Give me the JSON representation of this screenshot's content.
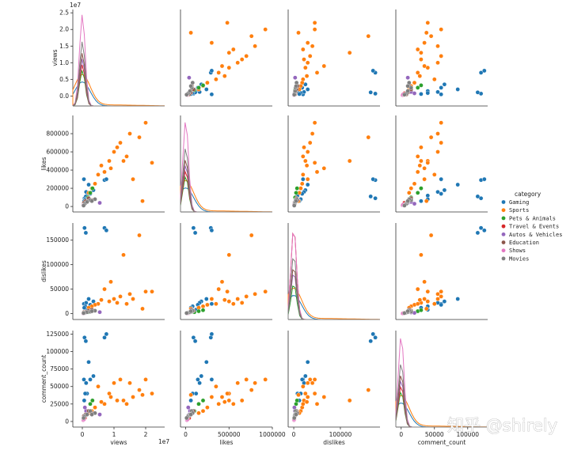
{
  "watermark": "知乎 @shirely",
  "colors": {
    "Gaming": "#1f77b4",
    "Sports": "#ff7f0e",
    "Pets & Animals": "#2ca02c",
    "Travel & Events": "#d62728",
    "Autos & Vehicles": "#9467bd",
    "Education": "#8c564b",
    "Shows": "#e377c2",
    "Movies": "#7f7f7f"
  },
  "chart_data": {
    "type": "scatter",
    "subtype": "pairplot",
    "hue": "category",
    "legend": {
      "title": "category",
      "placement": "right",
      "entries": [
        "Gaming",
        "Sports",
        "Pets & Animals",
        "Travel & Events",
        "Autos & Vehicles",
        "Education",
        "Shows",
        "Movies"
      ]
    },
    "variables": [
      "views",
      "likes",
      "dislikes",
      "comment_count"
    ],
    "axes": {
      "views": {
        "label": "views",
        "range": [
          -3000000,
          26000000
        ],
        "ticks": [
          0,
          10000000,
          20000000
        ],
        "tick_labels": [
          "0",
          "1",
          "2"
        ],
        "offset_text": "1e7",
        "diag_ticks": [
          0,
          5000000,
          10000000,
          15000000,
          20000000,
          25000000
        ],
        "diag_tick_labels": [
          "0.0",
          "0.5",
          "1.0",
          "1.5",
          "2.0",
          "2.5"
        ]
      },
      "likes": {
        "label": "likes",
        "range": [
          -60000,
          1000000
        ],
        "ticks": [
          0,
          200000,
          400000,
          600000,
          800000
        ],
        "tick_labels": [
          "0",
          "200000",
          "400000",
          "600000",
          "800000"
        ],
        "x_ticks": [
          0,
          500000,
          1000000
        ],
        "x_tick_labels": [
          "0",
          "500000",
          "1000000"
        ]
      },
      "dislikes": {
        "label": "dislikes",
        "range": [
          -12000,
          185000
        ],
        "ticks": [
          0,
          50000,
          100000,
          150000
        ],
        "tick_labels": [
          "0",
          "50000",
          "100000",
          "150000"
        ],
        "x_ticks": [
          0,
          100000
        ],
        "x_tick_labels": [
          "0",
          "100000"
        ]
      },
      "comment_count": {
        "label": "comment_count",
        "range": [
          -8000,
          130000
        ],
        "ticks": [
          0,
          25000,
          50000,
          75000,
          100000,
          125000
        ],
        "tick_labels": [
          "0",
          "25000",
          "50000",
          "75000",
          "100000",
          "125000"
        ],
        "x_ticks": [
          0,
          50000,
          100000
        ],
        "x_tick_labels": [
          "0",
          "50000",
          "100000"
        ]
      }
    },
    "series": [
      {
        "name": "Gaming",
        "points": [
          {
            "views": 1500000,
            "likes": 120000,
            "dislikes": 8000,
            "comment_count": 40000
          },
          {
            "views": 700000,
            "likes": 90000,
            "dislikes": 175000,
            "comment_count": 120000
          },
          {
            "views": 1100000,
            "likes": 110000,
            "dislikes": 165000,
            "comment_count": 115000
          },
          {
            "views": 7000000,
            "likes": 290000,
            "dislikes": 175000,
            "comment_count": 120000
          },
          {
            "views": 7600000,
            "likes": 300000,
            "dislikes": 170000,
            "comment_count": 125000
          },
          {
            "views": 500000,
            "likes": 300000,
            "dislikes": 20000,
            "comment_count": 60000
          },
          {
            "views": 2000000,
            "likes": 240000,
            "dislikes": 30000,
            "comment_count": 85000
          },
          {
            "views": 3500000,
            "likes": 180000,
            "dislikes": 25000,
            "comment_count": 65000
          },
          {
            "views": 1200000,
            "likes": 160000,
            "dislikes": 22000,
            "comment_count": 55000
          },
          {
            "views": 900000,
            "likes": 80000,
            "dislikes": 15000,
            "comment_count": 40000
          },
          {
            "views": 2500000,
            "likes": 140000,
            "dislikes": 18000,
            "comment_count": 60000
          },
          {
            "views": 600000,
            "likes": 60000,
            "dislikes": 12000,
            "comment_count": 30000
          }
        ]
      },
      {
        "name": "Sports",
        "points": [
          {
            "views": 5000000,
            "likes": 350000,
            "dislikes": 20000,
            "comment_count": 50000
          },
          {
            "views": 8500000,
            "likes": 500000,
            "dislikes": 25000,
            "comment_count": 40000
          },
          {
            "views": 10000000,
            "likes": 600000,
            "dislikes": 30000,
            "comment_count": 55000
          },
          {
            "views": 12000000,
            "likes": 700000,
            "dislikes": 35000,
            "comment_count": 60000
          },
          {
            "views": 15000000,
            "likes": 800000,
            "dislikes": 40000,
            "comment_count": 55000
          },
          {
            "views": 20000000,
            "likes": 920000,
            "dislikes": 45000,
            "comment_count": 60000
          },
          {
            "views": 18000000,
            "likes": 760000,
            "dislikes": 160000,
            "comment_count": 45000
          },
          {
            "views": 13000000,
            "likes": 500000,
            "dislikes": 120000,
            "comment_count": 30000
          },
          {
            "views": 9000000,
            "likes": 420000,
            "dislikes": 65000,
            "comment_count": 35000
          },
          {
            "views": 7000000,
            "likes": 380000,
            "dislikes": 50000,
            "comment_count": 25000
          },
          {
            "views": 22000000,
            "likes": 480000,
            "dislikes": 45000,
            "comment_count": 40000
          },
          {
            "views": 4000000,
            "likes": 250000,
            "dislikes": 18000,
            "comment_count": 20000
          },
          {
            "views": 3000000,
            "likes": 200000,
            "dislikes": 15000,
            "comment_count": 15000
          },
          {
            "views": 16000000,
            "likes": 300000,
            "dislikes": 30000,
            "comment_count": 35000
          },
          {
            "views": 11000000,
            "likes": 650000,
            "dislikes": 22000,
            "comment_count": 30000
          },
          {
            "views": 6000000,
            "likes": 450000,
            "dislikes": 28000,
            "comment_count": 28000
          },
          {
            "views": 19000000,
            "likes": 60000,
            "dislikes": 10000,
            "comment_count": 38000
          },
          {
            "views": 14000000,
            "likes": 550000,
            "dislikes": 20000,
            "comment_count": 25000
          },
          {
            "views": 2000000,
            "likes": 150000,
            "dislikes": 12000,
            "comment_count": 12000
          }
        ]
      },
      {
        "name": "Pets & Animals",
        "points": [
          {
            "views": 2500000,
            "likes": 150000,
            "dislikes": 5000,
            "comment_count": 25000
          },
          {
            "views": 3200000,
            "likes": 200000,
            "dislikes": 7000,
            "comment_count": 30000
          },
          {
            "views": 1800000,
            "likes": 100000,
            "dislikes": 3000,
            "comment_count": 15000
          }
        ]
      },
      {
        "name": "Travel & Events",
        "points": [
          {
            "views": 300000,
            "likes": 20000,
            "dislikes": 1000,
            "comment_count": 3000
          },
          {
            "views": 800000,
            "likes": 40000,
            "dislikes": 1500,
            "comment_count": 5000
          }
        ]
      },
      {
        "name": "Autos & Vehicles",
        "points": [
          {
            "views": 1200000,
            "likes": 50000,
            "dislikes": 2500,
            "comment_count": 15000
          },
          {
            "views": 5500000,
            "likes": 40000,
            "dislikes": 3000,
            "comment_count": 10000
          },
          {
            "views": 800000,
            "likes": 30000,
            "dislikes": 1500,
            "comment_count": 20000
          }
        ]
      },
      {
        "name": "Education",
        "points": [
          {
            "views": 1000000,
            "likes": 60000,
            "dislikes": 4000,
            "comment_count": 10000
          },
          {
            "views": 2000000,
            "likes": 90000,
            "dislikes": 6000,
            "comment_count": 15000
          },
          {
            "views": 3000000,
            "likes": 70000,
            "dislikes": 8000,
            "comment_count": 12000
          },
          {
            "views": 500000,
            "likes": 40000,
            "dislikes": 3000,
            "comment_count": 8000
          }
        ]
      },
      {
        "name": "Shows",
        "points": [
          {
            "views": 300000,
            "likes": 15000,
            "dislikes": 500,
            "comment_count": 2000
          },
          {
            "views": 500000,
            "likes": 20000,
            "dislikes": 800,
            "comment_count": 3000
          }
        ]
      },
      {
        "name": "Movies",
        "points": [
          {
            "views": 800000,
            "likes": 30000,
            "dislikes": 2000,
            "comment_count": 8000
          },
          {
            "views": 1500000,
            "likes": 50000,
            "dislikes": 3000,
            "comment_count": 10000
          },
          {
            "views": 2500000,
            "likes": 70000,
            "dislikes": 4000,
            "comment_count": 15000
          },
          {
            "views": 400000,
            "likes": 10000,
            "dislikes": 1000,
            "comment_count": 5000
          },
          {
            "views": 4000000,
            "likes": 80000,
            "dislikes": 6000,
            "comment_count": 12000
          },
          {
            "views": 3000000,
            "likes": 60000,
            "dislikes": 5000,
            "comment_count": 10000
          }
        ]
      }
    ]
  }
}
